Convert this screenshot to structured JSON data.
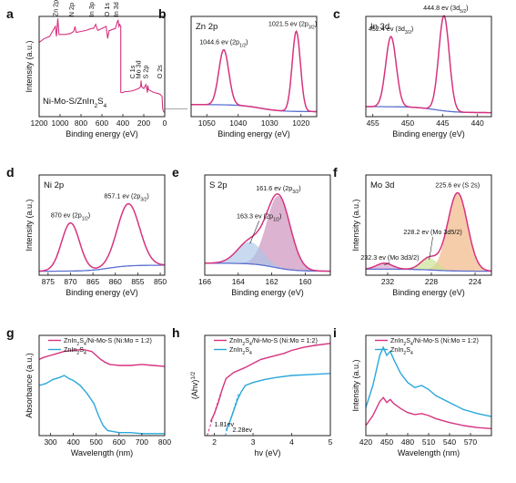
{
  "chart_data": [
    {
      "panel": "a",
      "type": "line",
      "xlabel": "Binding energy (eV)",
      "ylabel": "Intensity (a.u.)",
      "xlim": [
        1200,
        0
      ],
      "xticks": [
        1200,
        1000,
        800,
        600,
        400,
        200,
        0
      ],
      "sample_text": "Ni-Mo-S/ZnIn₂S₄",
      "colors": {
        "upper": "#d6337f",
        "lower": "#d6337f",
        "guide": "#888888"
      },
      "series": [
        {
          "x": [
            1200,
            1150,
            1100,
            1045,
            1035,
            1022,
            1010,
            1000,
            950,
            900,
            870,
            857,
            845,
            800,
            750,
            700,
            680,
            660,
            640,
            600,
            560,
            545,
            531,
            520,
            500,
            470,
            452,
            445,
            437,
            430,
            420
          ],
          "y": [
            0.74,
            0.78,
            0.8,
            0.9,
            0.8,
            0.98,
            0.82,
            0.82,
            0.82,
            0.83,
            0.85,
            0.9,
            0.84,
            0.85,
            0.86,
            0.88,
            0.88,
            0.92,
            0.86,
            0.88,
            0.9,
            0.78,
            0.86,
            0.86,
            0.87,
            0.88,
            0.95,
            0.96,
            0.9,
            0.92,
            0.9
          ]
        },
        {
          "x": [
            420,
            400,
            380,
            350,
            300,
            250,
            230,
            226,
            220,
            200,
            180,
            165,
            162,
            155,
            140,
            100,
            60,
            40,
            25,
            20,
            10,
            0
          ],
          "y": [
            0.24,
            0.24,
            0.25,
            0.25,
            0.26,
            0.28,
            0.3,
            0.36,
            0.3,
            0.28,
            0.32,
            0.24,
            0.31,
            0.27,
            0.26,
            0.24,
            0.23,
            0.22,
            0.2,
            0.08,
            0.05,
            0.04
          ]
        }
      ],
      "annotations": [
        {
          "text": "Zn 2p",
          "x": 1022
        },
        {
          "text": "N 2p",
          "x": 870
        },
        {
          "text": "In 3p",
          "x": 680
        },
        {
          "text": "O 1s",
          "x": 531
        },
        {
          "text": "In 3d",
          "x": 445
        },
        {
          "text": "C 1s",
          "x": 285
        },
        {
          "text": "S 2p",
          "x": 162
        },
        {
          "text": "Mo 3d",
          "x": 229
        },
        {
          "text": "O 2s",
          "x": 25
        }
      ]
    },
    {
      "panel": "b",
      "type": "line",
      "title": "Zn 2p",
      "xlabel": "Binding energy (eV)",
      "ylabel": "",
      "xlim": [
        1055,
        1015
      ],
      "xticks": [
        1050,
        1040,
        1030,
        1020
      ],
      "colors": {
        "fit": "#d6337f",
        "background": "#5b6fd1"
      },
      "peaks": [
        {
          "label": "1044.6 ev (2p1/2)",
          "x": 1044.6,
          "height": 0.55,
          "width": 1.6
        },
        {
          "label": "1021.5 ev (2p3/2)",
          "x": 1021.5,
          "height": 0.8,
          "width": 1.3
        }
      ],
      "background": {
        "left": 0.12,
        "right": 0.05
      }
    },
    {
      "panel": "c",
      "type": "line",
      "title": "In 3d",
      "xlabel": "Binding energy (eV)",
      "ylabel": "",
      "xlim": [
        456,
        438
      ],
      "xticks": [
        455,
        450,
        445,
        440
      ],
      "colors": {
        "fit": "#d6337f",
        "background": "#5b6fd1"
      },
      "peaks": [
        {
          "label": "452.4 ev (3d3/2)",
          "x": 452.4,
          "height": 0.7,
          "width": 0.75
        },
        {
          "label": "444.8 ev (3d5/2)",
          "x": 444.8,
          "height": 0.95,
          "width": 0.75
        }
      ],
      "background": {
        "left": 0.1,
        "right": 0.04
      }
    },
    {
      "panel": "d",
      "type": "line",
      "title": "Ni 2p",
      "xlabel": "Binding energy (eV)",
      "ylabel": "Intensity (a.u.)",
      "xlim": [
        877,
        849
      ],
      "xticks": [
        875,
        870,
        865,
        860,
        855,
        850
      ],
      "colors": {
        "fit": "#d6337f",
        "background": "#5b6fd1"
      },
      "peaks": [
        {
          "label": "870 ev (2p1/2)",
          "x": 870,
          "height": 0.48,
          "width": 2.0
        },
        {
          "label": "857.1 ev (2p3/2)",
          "x": 857.1,
          "height": 0.62,
          "width": 2.5
        }
      ],
      "background": {
        "left": 0.04,
        "right": 0.1
      }
    },
    {
      "panel": "e",
      "type": "area",
      "title": "S 2p",
      "xlabel": "Binding energy (eV)",
      "ylabel": "",
      "xlim": [
        166,
        158.5
      ],
      "xticks": [
        166,
        164,
        162,
        160
      ],
      "colors": {
        "envelope": "#d6337f",
        "main": "#c98ab8",
        "minor": "#a9c6e8",
        "background": "#5b6fd1"
      },
      "peaks": [
        {
          "label": "161.6 ev (2p3/2)",
          "x": 161.6,
          "height": 0.72,
          "width": 0.7
        },
        {
          "label": "163.3 ev (2p1/2)",
          "x": 163.3,
          "height": 0.22,
          "width": 0.75
        }
      ],
      "background": {
        "left": 0.12,
        "right": 0.04
      }
    },
    {
      "panel": "f",
      "type": "area",
      "title": "Mo 3d",
      "xlabel": "Binding energy (eV)",
      "ylabel": "Intensity (a.u.)",
      "xlim": [
        234,
        222.5
      ],
      "xticks": [
        232,
        228,
        224
      ],
      "colors": {
        "envelope": "#d6337f",
        "s2s": "#f1b27e",
        "mo52": "#c9de8f",
        "mo32": "#d79cc7",
        "background": "#5b6fd1"
      },
      "peaks": [
        {
          "label": "225.6 ev (S 2s)",
          "x": 225.6,
          "height": 0.78,
          "width": 0.9
        },
        {
          "label": "228.2 ev (Mo 3d5/2)",
          "x": 228.2,
          "height": 0.12,
          "width": 0.75
        },
        {
          "label": "232.3 ev (Mo 3d3/2)",
          "x": 232.3,
          "height": 0.06,
          "width": 0.75
        }
      ],
      "background": {
        "left": 0.06,
        "right": 0.04
      }
    },
    {
      "panel": "g",
      "type": "line",
      "xlabel": "Wavelength (nm)",
      "ylabel": "Absorbance (a.u.)",
      "xlim": [
        250,
        800
      ],
      "xticks": [
        300,
        400,
        500,
        600,
        700,
        800
      ],
      "series": [
        {
          "name": "ZnIn₂S₄/Ni-Mo-S (Ni:Mo = 1:2)",
          "color": "#d6337f",
          "x": [
            250,
            270,
            300,
            330,
            360,
            400,
            440,
            480,
            500,
            520,
            540,
            560,
            600,
            650,
            700,
            750,
            800
          ],
          "y": [
            0.76,
            0.78,
            0.8,
            0.82,
            0.84,
            0.85,
            0.86,
            0.84,
            0.8,
            0.76,
            0.73,
            0.71,
            0.7,
            0.7,
            0.71,
            0.7,
            0.69
          ]
        },
        {
          "name": "ZnIn₂S₄",
          "color": "#2aa7d9",
          "x": [
            250,
            280,
            310,
            340,
            360,
            380,
            400,
            430,
            460,
            490,
            510,
            530,
            550,
            600,
            650,
            700,
            750,
            800
          ],
          "y": [
            0.5,
            0.52,
            0.56,
            0.58,
            0.6,
            0.57,
            0.55,
            0.5,
            0.42,
            0.32,
            0.2,
            0.1,
            0.05,
            0.03,
            0.03,
            0.02,
            0.02,
            0.02
          ]
        }
      ]
    },
    {
      "panel": "h",
      "type": "line",
      "xlabel": "hv (eV)",
      "ylabel": "(Ahv)1/2",
      "xlim": [
        1.75,
        5
      ],
      "xticks": [
        2,
        3,
        4,
        5
      ],
      "annotations": [
        {
          "text": "1.81ev",
          "x": 1.81
        },
        {
          "text": "2.28ev",
          "x": 2.28
        }
      ],
      "series": [
        {
          "name": "ZnIn₂S₄/Ni-Mo-S (Ni:Mo = 1:2)",
          "color": "#d6337f",
          "x": [
            1.9,
            2.0,
            2.1,
            2.2,
            2.3,
            2.5,
            2.8,
            3.0,
            3.2,
            3.5,
            3.8,
            4.0,
            4.3,
            4.6,
            5.0
          ],
          "y": [
            0.14,
            0.22,
            0.33,
            0.46,
            0.57,
            0.63,
            0.68,
            0.72,
            0.76,
            0.79,
            0.82,
            0.85,
            0.88,
            0.9,
            0.92
          ]
        },
        {
          "name": "ZnIn₂S₄",
          "color": "#2aa7d9",
          "x": [
            2.3,
            2.4,
            2.5,
            2.6,
            2.7,
            2.8,
            3.0,
            3.3,
            3.6,
            4.0,
            4.5,
            5.0
          ],
          "y": [
            0.05,
            0.14,
            0.25,
            0.36,
            0.44,
            0.5,
            0.53,
            0.56,
            0.58,
            0.6,
            0.61,
            0.62
          ]
        }
      ]
    },
    {
      "panel": "i",
      "type": "line",
      "xlabel": "Wavelength (nm)",
      "ylabel": "Intensity (a.u.)",
      "xlim": [
        420,
        600
      ],
      "xticks": [
        420,
        450,
        480,
        510,
        540,
        570
      ],
      "series": [
        {
          "name": "ZnIn₂S₄/Ni-Mo-S (Ni:Mo = 1:2)",
          "color": "#d6337f",
          "x": [
            420,
            430,
            440,
            445,
            450,
            455,
            460,
            470,
            480,
            490,
            500,
            510,
            520,
            540,
            560,
            580,
            600
          ],
          "y": [
            0.1,
            0.2,
            0.34,
            0.38,
            0.33,
            0.36,
            0.32,
            0.27,
            0.23,
            0.21,
            0.22,
            0.2,
            0.17,
            0.13,
            0.1,
            0.08,
            0.07
          ]
        },
        {
          "name": "ZnIn₂S₄",
          "color": "#2aa7d9",
          "x": [
            420,
            430,
            440,
            445,
            450,
            455,
            460,
            470,
            480,
            490,
            500,
            510,
            520,
            540,
            560,
            580,
            600
          ],
          "y": [
            0.28,
            0.5,
            0.8,
            0.88,
            0.8,
            0.84,
            0.76,
            0.62,
            0.53,
            0.48,
            0.5,
            0.46,
            0.4,
            0.33,
            0.26,
            0.22,
            0.19
          ]
        }
      ]
    }
  ]
}
